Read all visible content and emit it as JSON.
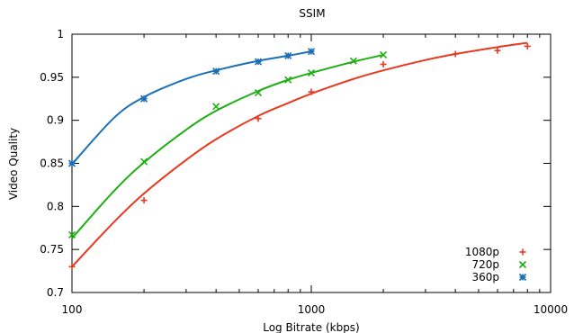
{
  "chart_data": {
    "type": "scatter",
    "title": "SSIM",
    "xlabel": "Log Bitrate (kbps)",
    "ylabel": "Video Quality",
    "xscale": "log",
    "xlim": [
      100,
      10000
    ],
    "ylim": [
      0.7,
      1.0
    ],
    "x_ticks": [
      "100",
      "1000",
      "10000"
    ],
    "y_ticks": [
      "0.7",
      "0.75",
      "0.8",
      "0.85",
      "0.9",
      "0.95",
      "1"
    ],
    "grid": false,
    "legend_position": "bottom-right",
    "series": [
      {
        "name": "1080p",
        "color": "#e8391f",
        "marker": "plus",
        "x": [
          100,
          200,
          600,
          1000,
          2000,
          4000,
          6000,
          8000
        ],
        "y": [
          0.73,
          0.807,
          0.902,
          0.933,
          0.965,
          0.977,
          0.981,
          0.986
        ],
        "fit_x": [
          100,
          150,
          200,
          300,
          400,
          600,
          800,
          1000,
          1500,
          2000,
          3000,
          4000,
          6000,
          8000
        ],
        "fit_y": [
          0.73,
          0.782,
          0.815,
          0.854,
          0.878,
          0.905,
          0.92,
          0.931,
          0.948,
          0.958,
          0.97,
          0.977,
          0.985,
          0.99
        ]
      },
      {
        "name": "720p",
        "color": "#1fae14",
        "marker": "x",
        "x": [
          100,
          200,
          400,
          600,
          800,
          1000,
          1500,
          2000
        ],
        "y": [
          0.767,
          0.852,
          0.916,
          0.932,
          0.947,
          0.955,
          0.969,
          0.976
        ],
        "fit_x": [
          100,
          150,
          200,
          300,
          400,
          600,
          800,
          1000,
          1500,
          2000
        ],
        "fit_y": [
          0.763,
          0.818,
          0.851,
          0.889,
          0.911,
          0.934,
          0.947,
          0.955,
          0.968,
          0.976
        ]
      },
      {
        "name": "360p",
        "color": "#1a6fb5",
        "marker": "star",
        "x": [
          100,
          200,
          400,
          600,
          800,
          1000
        ],
        "y": [
          0.85,
          0.925,
          0.957,
          0.968,
          0.975,
          0.98
        ],
        "fit_x": [
          100,
          150,
          200,
          300,
          400,
          600,
          800,
          1000
        ],
        "fit_y": [
          0.849,
          0.903,
          0.927,
          0.948,
          0.958,
          0.969,
          0.975,
          0.98
        ]
      }
    ]
  }
}
